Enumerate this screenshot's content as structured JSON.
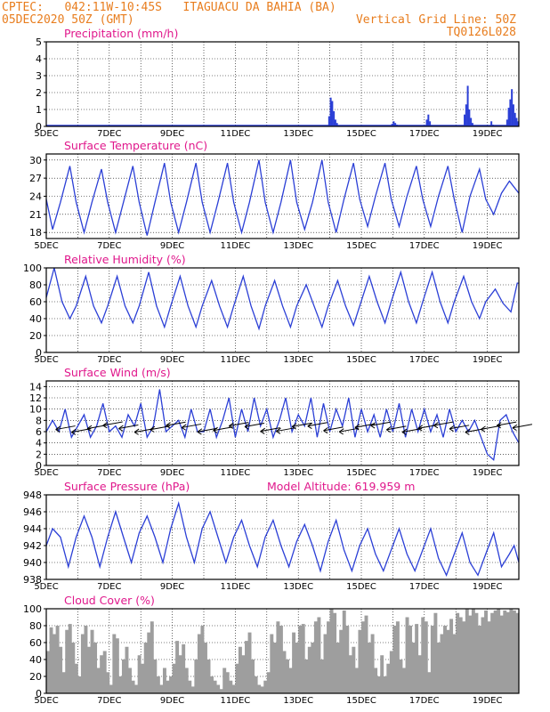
{
  "header": {
    "left_line1": "CPTEC:   042:11W-10:45S   ITAGUACU DA BAHIA (BA)",
    "left_line2": "05DEC2020 50Z (GMT)",
    "right_line1": "Vertical Grid Line: 50Z",
    "right_line2": "TQ0126L028"
  },
  "colors": {
    "series": "#2b3fd6",
    "title": "#e0188c",
    "header": "#e87d1e",
    "grid": "#000000",
    "cloud": "#9e9e9e"
  },
  "chart_data": [
    {
      "type": "bar",
      "title": "Precipitation (mm/h)",
      "ylim": [
        0,
        5
      ],
      "yticks": [
        0,
        1,
        2,
        3,
        4,
        5
      ],
      "xlim": [
        5,
        20
      ],
      "xticks": [
        "5DEC",
        "7DEC",
        "9DEC",
        "11DEC",
        "13DEC",
        "15DEC",
        "17DEC",
        "19DEC"
      ],
      "x": [
        13.95,
        14.0,
        14.05,
        14.1,
        14.15,
        14.2,
        15.95,
        16.0,
        16.05,
        16.1,
        16.15,
        17.05,
        17.1,
        17.15,
        18.25,
        18.3,
        18.35,
        18.4,
        18.45,
        18.5,
        19.1,
        19.15,
        19.6,
        19.65,
        19.7,
        19.75,
        19.8,
        19.85,
        19.9,
        19.95
      ],
      "values": [
        0.6,
        1.7,
        1.5,
        0.9,
        0.4,
        0.2,
        0.15,
        0.3,
        0.2,
        0.1,
        0.05,
        0.4,
        0.7,
        0.3,
        0.7,
        1.3,
        2.4,
        1.0,
        0.5,
        0.2,
        0.3,
        0.1,
        0.4,
        1.1,
        1.6,
        2.2,
        1.3,
        0.8,
        0.5,
        0.3
      ]
    },
    {
      "type": "line",
      "title": "Surface Temperature (nC)",
      "ylim": [
        17,
        31
      ],
      "yticks": [
        18,
        21,
        24,
        27,
        30
      ],
      "xlim": [
        5,
        20
      ],
      "xticks": [
        "5DEC",
        "7DEC",
        "9DEC",
        "11DEC",
        "13DEC",
        "15DEC",
        "17DEC",
        "19DEC"
      ],
      "x": [
        5.0,
        5.2,
        5.45,
        5.75,
        5.95,
        6.2,
        6.45,
        6.75,
        6.95,
        7.2,
        7.45,
        7.75,
        7.95,
        8.2,
        8.45,
        8.75,
        8.95,
        9.2,
        9.45,
        9.75,
        9.95,
        10.2,
        10.45,
        10.75,
        10.95,
        11.2,
        11.45,
        11.75,
        11.95,
        12.2,
        12.45,
        12.75,
        12.95,
        13.2,
        13.45,
        13.75,
        13.95,
        14.2,
        14.45,
        14.75,
        14.95,
        15.2,
        15.45,
        15.75,
        15.95,
        16.2,
        16.45,
        16.75,
        16.95,
        17.2,
        17.45,
        17.75,
        17.95,
        18.2,
        18.45,
        18.75,
        18.95,
        19.2,
        19.45,
        19.7,
        19.85,
        20.0
      ],
      "series": [
        {
          "values": [
            23.5,
            18.5,
            23,
            29,
            23,
            18,
            23,
            28.5,
            23,
            18,
            23,
            29,
            23,
            17.5,
            23,
            29.5,
            23,
            18,
            23,
            29.5,
            23,
            18,
            23,
            29.5,
            23,
            18,
            23,
            30,
            23,
            18,
            23,
            30,
            23,
            18.5,
            23,
            30,
            23,
            18,
            23.5,
            29.5,
            23.5,
            19,
            24,
            29.5,
            23.5,
            19,
            24,
            29,
            23.5,
            19,
            24,
            29,
            23.5,
            18,
            24,
            28.5,
            23.5,
            21,
            24.5,
            26.5,
            25.5,
            24.5
          ]
        }
      ]
    },
    {
      "type": "line",
      "title": "Relative Humidity (%)",
      "ylim": [
        0,
        100
      ],
      "yticks": [
        0,
        20,
        40,
        60,
        80,
        100
      ],
      "xlim": [
        5,
        20
      ],
      "xticks": [
        "5DEC",
        "7DEC",
        "9DEC",
        "11DEC",
        "13DEC",
        "15DEC",
        "17DEC",
        "19DEC"
      ],
      "x": [
        5.0,
        5.25,
        5.5,
        5.75,
        5.95,
        6.25,
        6.5,
        6.75,
        6.95,
        7.25,
        7.5,
        7.75,
        7.95,
        8.25,
        8.5,
        8.75,
        8.95,
        9.25,
        9.5,
        9.75,
        9.95,
        10.25,
        10.5,
        10.75,
        10.95,
        11.25,
        11.5,
        11.75,
        11.95,
        12.25,
        12.5,
        12.75,
        12.95,
        13.25,
        13.5,
        13.75,
        13.95,
        14.25,
        14.5,
        14.75,
        14.95,
        15.25,
        15.5,
        15.75,
        15.95,
        16.25,
        16.5,
        16.75,
        16.95,
        17.25,
        17.5,
        17.75,
        17.95,
        18.25,
        18.5,
        18.75,
        18.95,
        19.25,
        19.5,
        19.75,
        19.95,
        20.0
      ],
      "series": [
        {
          "values": [
            65,
            100,
            60,
            40,
            55,
            90,
            55,
            35,
            55,
            90,
            55,
            35,
            55,
            95,
            55,
            30,
            55,
            90,
            55,
            30,
            55,
            85,
            55,
            30,
            55,
            90,
            55,
            28,
            55,
            85,
            55,
            30,
            55,
            80,
            55,
            30,
            55,
            85,
            55,
            32,
            55,
            90,
            60,
            35,
            60,
            95,
            60,
            35,
            60,
            95,
            60,
            35,
            60,
            90,
            60,
            40,
            60,
            75,
            58,
            48,
            82,
            82
          ]
        }
      ]
    },
    {
      "type": "line",
      "title": "Surface Wind (m/s)",
      "ylim": [
        0,
        15
      ],
      "yticks": [
        0,
        2,
        4,
        6,
        8,
        10,
        12,
        14
      ],
      "xlim": [
        5,
        20
      ],
      "xticks": [
        "5DEC",
        "7DEC",
        "9DEC",
        "11DEC",
        "13DEC",
        "15DEC",
        "17DEC",
        "19DEC"
      ],
      "x": [
        5.0,
        5.2,
        5.4,
        5.6,
        5.8,
        6.0,
        6.2,
        6.4,
        6.6,
        6.8,
        7.0,
        7.2,
        7.4,
        7.6,
        7.8,
        8.0,
        8.2,
        8.4,
        8.6,
        8.8,
        9.0,
        9.2,
        9.4,
        9.6,
        9.8,
        10.0,
        10.2,
        10.4,
        10.6,
        10.8,
        11.0,
        11.2,
        11.4,
        11.6,
        11.8,
        12.0,
        12.2,
        12.4,
        12.6,
        12.8,
        13.0,
        13.2,
        13.4,
        13.6,
        13.8,
        14.0,
        14.2,
        14.4,
        14.6,
        14.8,
        15.0,
        15.2,
        15.4,
        15.6,
        15.8,
        16.0,
        16.2,
        16.4,
        16.6,
        16.8,
        17.0,
        17.2,
        17.4,
        17.6,
        17.8,
        18.0,
        18.2,
        18.4,
        18.6,
        18.8,
        19.0,
        19.2,
        19.4,
        19.6,
        19.8,
        20.0
      ],
      "series": [
        {
          "values": [
            6,
            8,
            6,
            10,
            5,
            7,
            9,
            5,
            7,
            11,
            6,
            7,
            5,
            9,
            7,
            11,
            5,
            7,
            13.5,
            6,
            7,
            8,
            5,
            10,
            6,
            6,
            10,
            5,
            8,
            12,
            5,
            10,
            6,
            12,
            7,
            10,
            5,
            8,
            12,
            6,
            9,
            7,
            12,
            5,
            11,
            6,
            10,
            7,
            12,
            5,
            10,
            6,
            9,
            5,
            10,
            6,
            11,
            5,
            10,
            6,
            10,
            6,
            9,
            5,
            10,
            6,
            8,
            6,
            8,
            5,
            2,
            1,
            8,
            9,
            6,
            4
          ]
        }
      ],
      "wind_barbs_present": true
    },
    {
      "type": "line",
      "title": "Surface Pressure (hPa)",
      "subtitle": "Model Altitude: 619.959  m",
      "ylim": [
        938,
        948
      ],
      "yticks": [
        938,
        940,
        942,
        944,
        946,
        948
      ],
      "xlim": [
        5,
        20
      ],
      "xticks": [
        "5DEC",
        "7DEC",
        "9DEC",
        "11DEC",
        "13DEC",
        "15DEC",
        "17DEC",
        "19DEC"
      ],
      "x": [
        5.0,
        5.2,
        5.45,
        5.7,
        5.95,
        6.2,
        6.45,
        6.7,
        6.95,
        7.2,
        7.45,
        7.7,
        7.95,
        8.2,
        8.45,
        8.7,
        8.95,
        9.2,
        9.45,
        9.7,
        9.95,
        10.2,
        10.45,
        10.7,
        10.95,
        11.2,
        11.45,
        11.7,
        11.95,
        12.2,
        12.45,
        12.7,
        12.95,
        13.2,
        13.45,
        13.7,
        13.95,
        14.2,
        14.45,
        14.7,
        14.95,
        15.2,
        15.45,
        15.7,
        15.95,
        16.2,
        16.45,
        16.7,
        16.95,
        17.2,
        17.45,
        17.7,
        17.95,
        18.2,
        18.45,
        18.7,
        18.95,
        19.2,
        19.45,
        19.7,
        19.85,
        20.0
      ],
      "series": [
        {
          "values": [
            942,
            944,
            943,
            939.5,
            943,
            945.5,
            943,
            939.5,
            943,
            946,
            943,
            940,
            943.5,
            945.5,
            943,
            940,
            944,
            947,
            943,
            940,
            944,
            946,
            943,
            940,
            943,
            945,
            942,
            939.5,
            943,
            945,
            942,
            939.5,
            942.5,
            944.5,
            942,
            939,
            942.5,
            945,
            941.5,
            939,
            942,
            944,
            941,
            939,
            941.5,
            944,
            941,
            939,
            941.5,
            944,
            940.5,
            938.5,
            941,
            943.5,
            940,
            938.5,
            941,
            943.5,
            939.5,
            941,
            942,
            940
          ]
        }
      ]
    },
    {
      "type": "bar",
      "title": "Cloud Cover (%)",
      "ylim": [
        0,
        100
      ],
      "yticks": [
        0,
        20,
        40,
        60,
        80,
        100
      ],
      "xlim": [
        5,
        20
      ],
      "xticks": [
        "5DEC",
        "7DEC",
        "9DEC",
        "11DEC",
        "13DEC",
        "15DEC",
        "17DEC",
        "19DEC"
      ],
      "x": [
        5.0,
        5.1,
        5.2,
        5.3,
        5.4,
        5.5,
        5.6,
        5.7,
        5.8,
        5.9,
        6.0,
        6.1,
        6.2,
        6.3,
        6.4,
        6.5,
        6.6,
        6.7,
        6.8,
        6.9,
        7.0,
        7.1,
        7.2,
        7.3,
        7.4,
        7.5,
        7.6,
        7.7,
        7.8,
        7.9,
        8.0,
        8.1,
        8.2,
        8.3,
        8.4,
        8.5,
        8.6,
        8.7,
        8.8,
        8.9,
        9.0,
        9.1,
        9.2,
        9.3,
        9.4,
        9.5,
        9.6,
        9.7,
        9.8,
        9.9,
        10.0,
        10.1,
        10.2,
        10.3,
        10.4,
        10.5,
        10.6,
        10.7,
        10.8,
        10.9,
        11.0,
        11.1,
        11.2,
        11.3,
        11.4,
        11.5,
        11.6,
        11.7,
        11.8,
        11.9,
        12.0,
        12.1,
        12.2,
        12.3,
        12.4,
        12.5,
        12.6,
        12.7,
        12.8,
        12.9,
        13.0,
        13.1,
        13.2,
        13.3,
        13.4,
        13.5,
        13.6,
        13.7,
        13.8,
        13.9,
        14.0,
        14.1,
        14.2,
        14.3,
        14.4,
        14.5,
        14.6,
        14.7,
        14.8,
        14.9,
        15.0,
        15.1,
        15.2,
        15.3,
        15.4,
        15.5,
        15.6,
        15.7,
        15.8,
        15.9,
        16.0,
        16.1,
        16.2,
        16.3,
        16.4,
        16.5,
        16.6,
        16.7,
        16.8,
        16.9,
        17.0,
        17.1,
        17.2,
        17.3,
        17.4,
        17.5,
        17.6,
        17.7,
        17.8,
        17.9,
        18.0,
        18.1,
        18.2,
        18.3,
        18.4,
        18.5,
        18.6,
        18.7,
        18.8,
        18.9,
        19.0,
        19.1,
        19.2,
        19.3,
        19.4,
        19.5,
        19.6,
        19.7,
        19.8,
        19.9
      ],
      "values": [
        50,
        78,
        70,
        80,
        55,
        25,
        75,
        82,
        60,
        35,
        20,
        70,
        80,
        55,
        75,
        60,
        30,
        45,
        50,
        25,
        10,
        70,
        65,
        20,
        40,
        55,
        30,
        15,
        10,
        45,
        35,
        60,
        72,
        85,
        40,
        20,
        10,
        30,
        15,
        20,
        35,
        62,
        45,
        58,
        30,
        15,
        8,
        40,
        70,
        80,
        60,
        40,
        20,
        15,
        10,
        5,
        30,
        25,
        15,
        10,
        35,
        55,
        45,
        62,
        72,
        40,
        20,
        10,
        8,
        15,
        25,
        70,
        60,
        85,
        80,
        50,
        40,
        30,
        72,
        60,
        80,
        82,
        40,
        55,
        60,
        85,
        90,
        40,
        70,
        85,
        100,
        95,
        60,
        75,
        98,
        80,
        45,
        55,
        30,
        75,
        85,
        92,
        60,
        70,
        30,
        20,
        45,
        20,
        35,
        50,
        80,
        85,
        40,
        30,
        90,
        80,
        60,
        82,
        45,
        90,
        85,
        25,
        80,
        95,
        60,
        70,
        80,
        75,
        88,
        70,
        95,
        90,
        85,
        100,
        92,
        100,
        95,
        80,
        90,
        98,
        85,
        95,
        98,
        100,
        92,
        98,
        96,
        100,
        98,
        95
      ]
    }
  ]
}
